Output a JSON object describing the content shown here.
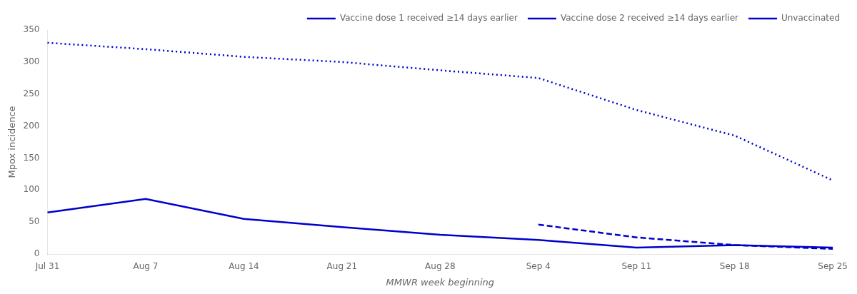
{
  "chart_data": {
    "type": "line",
    "categories": [
      "Jul 31",
      "Aug 7",
      "Aug 14",
      "Aug 21",
      "Aug 28",
      "Sep 4",
      "Sep 11",
      "Sep 18",
      "Sep 25"
    ],
    "series": [
      {
        "name": "Vaccine dose 1 received ≥14 days earlier",
        "color": "#0000cc",
        "line_style": "solid",
        "values": [
          65,
          86,
          55,
          42,
          30,
          22,
          10,
          14,
          10
        ]
      },
      {
        "name": "Vaccine dose 2 received ≥14 days earlier",
        "color": "#0000cc",
        "line_style": "dashed",
        "values": [
          null,
          null,
          null,
          null,
          null,
          46,
          26,
          14,
          8
        ]
      },
      {
        "name": "Unvaccinated",
        "color": "#0000cc",
        "line_style": "dotted",
        "values": [
          330,
          320,
          308,
          300,
          287,
          275,
          225,
          185,
          115
        ]
      }
    ],
    "x_label": "MMWR week beginning",
    "y_label": "Mpox incidence",
    "ylim": [
      0,
      350
    ],
    "yticks": [
      0,
      50,
      100,
      150,
      200,
      250,
      300,
      350
    ],
    "grid": false,
    "legend": "upper right"
  }
}
